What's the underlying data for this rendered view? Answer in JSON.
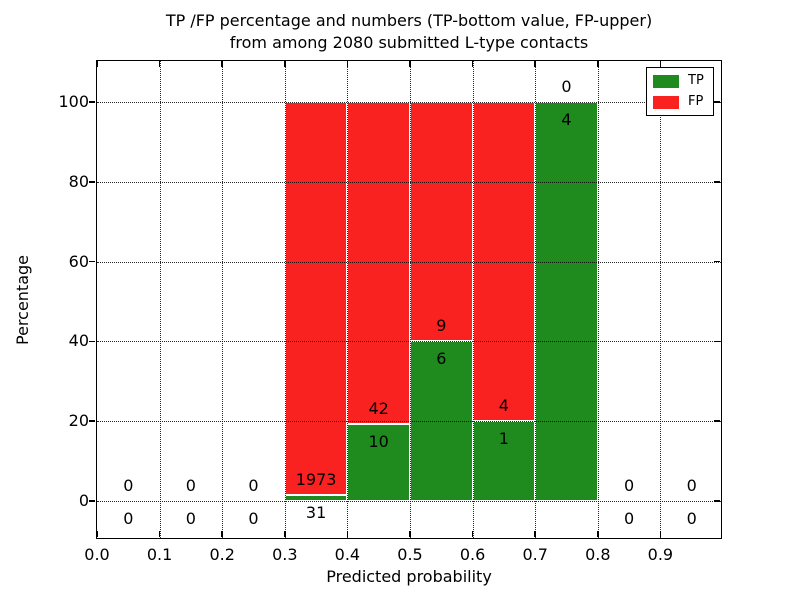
{
  "chart_data": {
    "type": "bar",
    "stacked": true,
    "title_line1": "TP /FP percentage and numbers (TP-bottom value, FP-upper)",
    "title_line2": "from among 2080 submitted L-type contacts",
    "xlabel": "Predicted probability",
    "ylabel": "Percentage",
    "total_submitted_contacts": 2080,
    "bin_edges": [
      0.0,
      0.1,
      0.2,
      0.3,
      0.4,
      0.5,
      0.6,
      0.7,
      0.8,
      0.9,
      1.0
    ],
    "xtick_labels": [
      "0.0",
      "0.1",
      "0.2",
      "0.3",
      "0.4",
      "0.5",
      "0.6",
      "0.7",
      "0.8",
      "0.9"
    ],
    "ytick_values": [
      0,
      20,
      40,
      60,
      80,
      100
    ],
    "xlim": [
      0.0,
      1.0
    ],
    "ylim": [
      -10,
      110
    ],
    "grid": "dotted",
    "grid_color": "#000000",
    "background_color": "#ffffff",
    "series": [
      {
        "name": "TP",
        "color": "#1f8b1f",
        "label_position": "bottom",
        "counts": [
          0,
          0,
          0,
          31,
          10,
          6,
          1,
          4,
          0,
          0
        ],
        "percent": [
          0,
          0,
          0,
          1.547,
          19.231,
          40,
          20,
          100,
          0,
          0
        ]
      },
      {
        "name": "FP",
        "color": "#fa2121",
        "label_position": "upper",
        "counts": [
          0,
          0,
          0,
          1973,
          42,
          9,
          4,
          0,
          0,
          0
        ],
        "percent": [
          0,
          0,
          0,
          98.453,
          80.769,
          60,
          80,
          0,
          0,
          0
        ]
      }
    ],
    "legend": {
      "position": "upper right",
      "entries": [
        {
          "label": "TP",
          "color": "#1f8b1f"
        },
        {
          "label": "FP",
          "color": "#fa2121"
        }
      ]
    }
  }
}
